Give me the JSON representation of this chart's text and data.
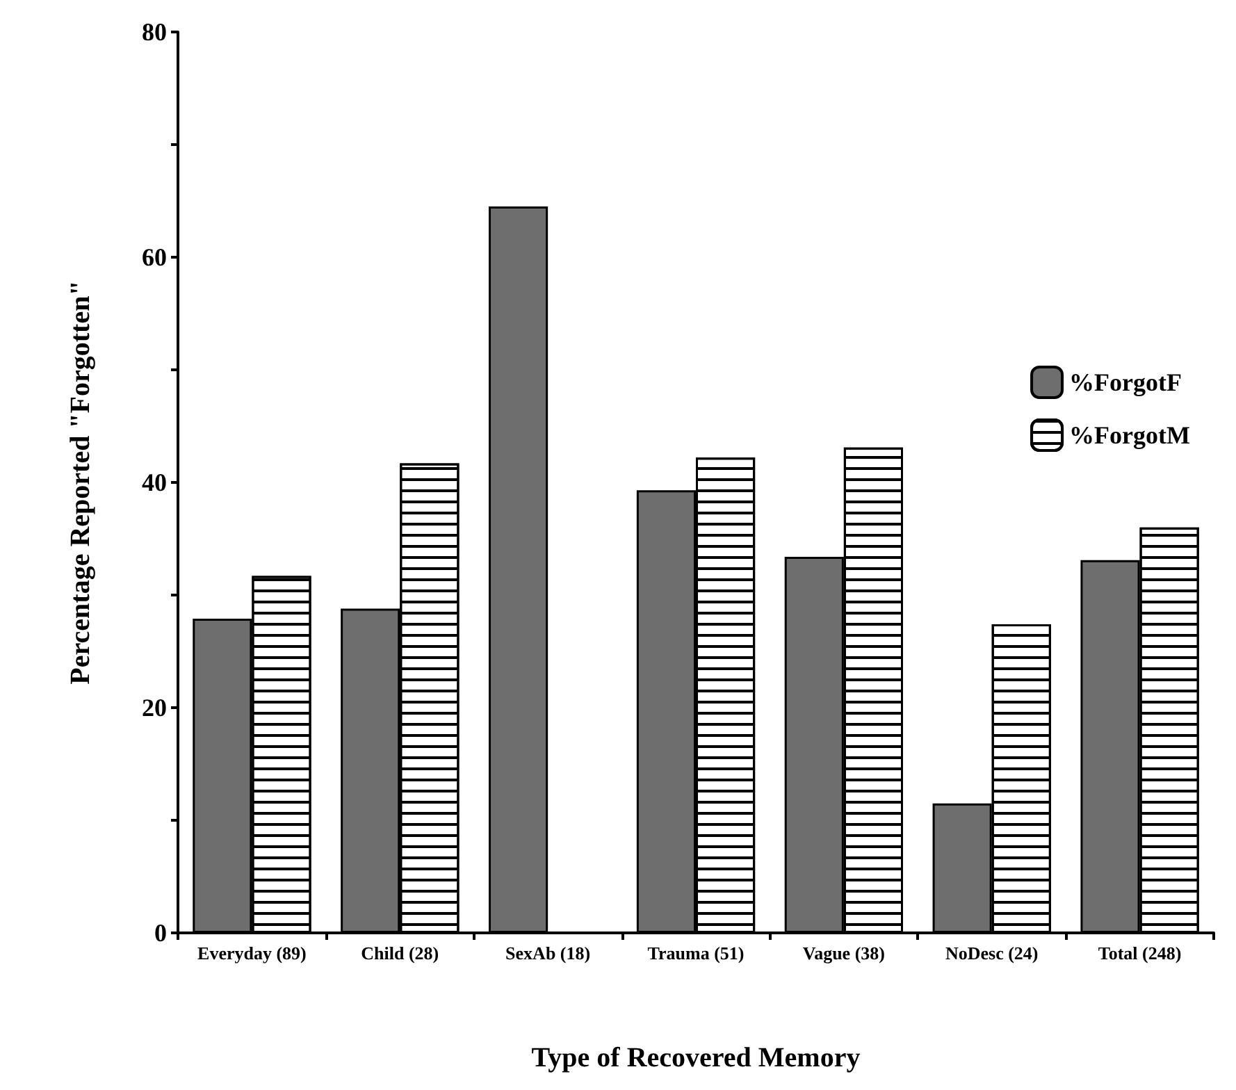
{
  "chart_data": {
    "type": "bar",
    "xlabel": "Type of Recovered Memory",
    "ylabel": "Percentage Reported \"Forgotten\"",
    "categories": [
      "Everyday (89)",
      "Child (28)",
      "SexAb (18)",
      "Trauma (51)",
      "Vague (38)",
      "NoDesc (24)",
      "Total (248)"
    ],
    "series": [
      {
        "name": "%ForgotF",
        "color": "#6e6e6e",
        "values": [
          27.9,
          28.8,
          64.5,
          39.3,
          33.4,
          11.5,
          33.1
        ]
      },
      {
        "name": "%ForgotM",
        "color": "#ffffff",
        "values": [
          31.7,
          41.7,
          null,
          42.2,
          43.1,
          27.4,
          36.0
        ]
      }
    ],
    "ylim": [
      0,
      80
    ],
    "yticks": [
      0,
      {
        "value": 10,
        "label": null
      },
      20,
      {
        "value": 30,
        "label": null
      },
      40,
      {
        "value": 50,
        "label": null
      },
      60,
      {
        "value": 70,
        "label": null
      },
      80
    ],
    "grid": false,
    "legend": "top right"
  }
}
